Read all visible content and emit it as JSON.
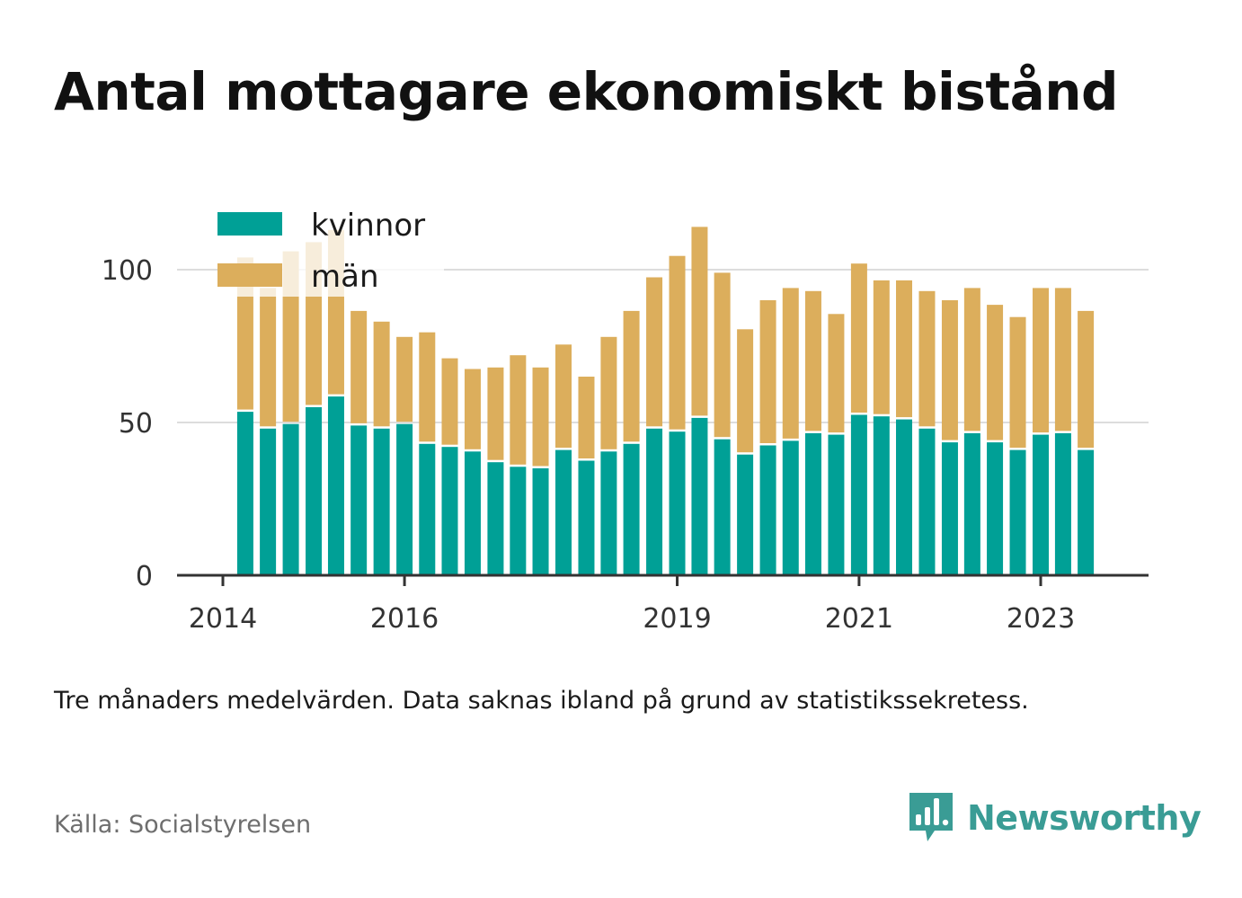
{
  "title": "Antal mottagare ekonomiskt bistånd",
  "note": "Tre månaders medelvärden. Data saknas ibland på grund av statistikssekretess.",
  "source": "Källa: Socialstyrelsen",
  "brand": {
    "name": "Newsworthy",
    "icon": "bar-chart-speech-bubble-icon",
    "color": "#3a9c95"
  },
  "colors": {
    "kvinnor": "#00a096",
    "man": "#dcae5c",
    "grid": "#dddddd",
    "axis": "#333333"
  },
  "chart_data": {
    "type": "bar",
    "stacked": true,
    "ylim": [
      0,
      115
    ],
    "yticks": [
      0,
      50,
      100
    ],
    "xticks": [
      "2014",
      "2016",
      "2019",
      "2021",
      "2023"
    ],
    "grid": true,
    "legend_position": "top-left",
    "x": [
      "2014-04",
      "2014-07",
      "2014-10",
      "2015-01",
      "2015-04",
      "2015-07",
      "2015-10",
      "2016-01",
      "2016-04",
      "2016-07",
      "2016-10",
      "2017-01",
      "2017-04",
      "2017-07",
      "2017-10",
      "2018-01",
      "2018-04",
      "2018-07",
      "2018-10",
      "2019-01",
      "2019-04",
      "2019-07",
      "2019-10",
      "2020-01",
      "2020-04",
      "2020-07",
      "2020-10",
      "2021-01",
      "2021-04",
      "2021-07",
      "2021-10",
      "2022-01",
      "2022-04",
      "2022-07",
      "2022-10",
      "2023-01",
      "2023-04",
      "2023-07"
    ],
    "series": [
      {
        "name": "kvinnor",
        "color": "#00a096",
        "values": [
          53.5,
          48,
          49.5,
          55,
          58.5,
          49,
          48,
          49.5,
          43,
          42,
          40.5,
          37,
          35.5,
          35,
          41,
          37.5,
          40.5,
          43,
          48,
          47,
          51.5,
          44.5,
          39.5,
          42.5,
          44,
          46.5,
          46,
          52.5,
          52,
          51,
          48,
          43.5,
          46.5,
          43.5,
          41,
          46,
          46.5,
          41
        ]
      },
      {
        "name": "män",
        "color": "#dcae5c",
        "values": [
          50.5,
          46,
          56.5,
          54,
          54.5,
          37.5,
          35,
          28.5,
          36.5,
          29,
          27,
          31,
          36.5,
          33,
          34.5,
          27.5,
          37.5,
          43.5,
          49.5,
          57.5,
          62.5,
          54.5,
          41,
          47.5,
          50,
          46.5,
          39.5,
          49.5,
          44.5,
          45.5,
          45,
          46.5,
          47.5,
          45,
          43.5,
          48,
          47.5,
          45.5
        ]
      }
    ]
  }
}
